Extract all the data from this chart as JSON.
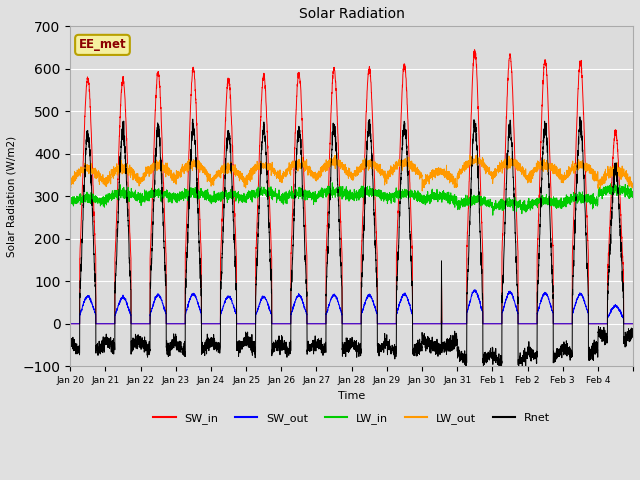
{
  "title": "Solar Radiation",
  "ylabel": "Solar Radiation (W/m2)",
  "xlabel": "Time",
  "ylim": [
    -100,
    700
  ],
  "yticks": [
    -100,
    0,
    100,
    200,
    300,
    400,
    500,
    600,
    700
  ],
  "annotation": "EE_met",
  "legend": [
    "SW_in",
    "SW_out",
    "LW_in",
    "LW_out",
    "Rnet"
  ],
  "colors": {
    "SW_in": "#ff0000",
    "SW_out": "#0000ff",
    "LW_in": "#00cc00",
    "LW_out": "#ff9900",
    "Rnet": "#000000"
  },
  "fig_bg": "#e0e0e0",
  "ax_bg": "#dcdcdc",
  "n_days": 16,
  "pts_per_day": 288
}
